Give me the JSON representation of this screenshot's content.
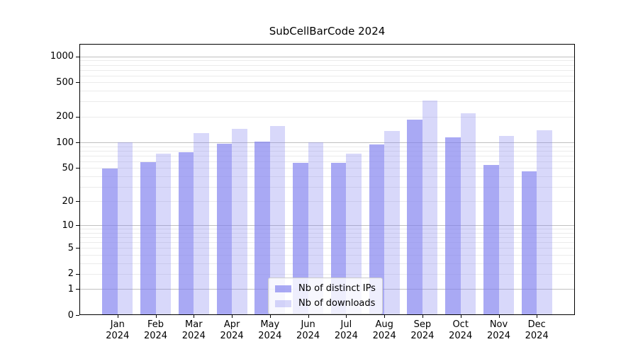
{
  "chart_data": {
    "type": "bar",
    "title": "SubCellBarCode 2024",
    "categories": [
      "Jan",
      "Feb",
      "Mar",
      "Apr",
      "May",
      "Jun",
      "Jul",
      "Aug",
      "Sep",
      "Oct",
      "Nov",
      "Dec"
    ],
    "category_year": "2024",
    "series": [
      {
        "name": "Nb of distinct IPs",
        "color": "rgba(127,127,238,0.67)",
        "values": [
          49,
          58,
          76,
          97,
          102,
          57,
          57,
          94,
          183,
          115,
          54,
          46
        ]
      },
      {
        "name": "Nb of downloads",
        "color": "rgba(127,127,238,0.30)",
        "values": [
          100,
          74,
          128,
          145,
          155,
          100,
          74,
          136,
          310,
          220,
          120,
          138
        ]
      }
    ],
    "yscale": "log1p",
    "ylim": [
      0,
      1400
    ],
    "y_ticks": [
      1000,
      500,
      200,
      100,
      50,
      20,
      10,
      5,
      2,
      1,
      0
    ],
    "grid": "on",
    "grid_major_values": [
      1,
      10,
      100,
      1000
    ],
    "grid_minor_values": [
      2,
      3,
      4,
      5,
      6,
      7,
      8,
      9,
      20,
      30,
      40,
      50,
      60,
      70,
      80,
      90,
      200,
      300,
      400,
      500,
      600,
      700,
      800,
      900
    ],
    "legend_position": "lower-center",
    "colors": {
      "bar_distinct_ips_on_white": "#a9a9f4",
      "bar_downloads_on_white": "#d8d8fa",
      "grid_major": "#c0c0c0",
      "grid_minor": "#ebebeb",
      "axis": "#000000",
      "background": "#ffffff"
    }
  }
}
